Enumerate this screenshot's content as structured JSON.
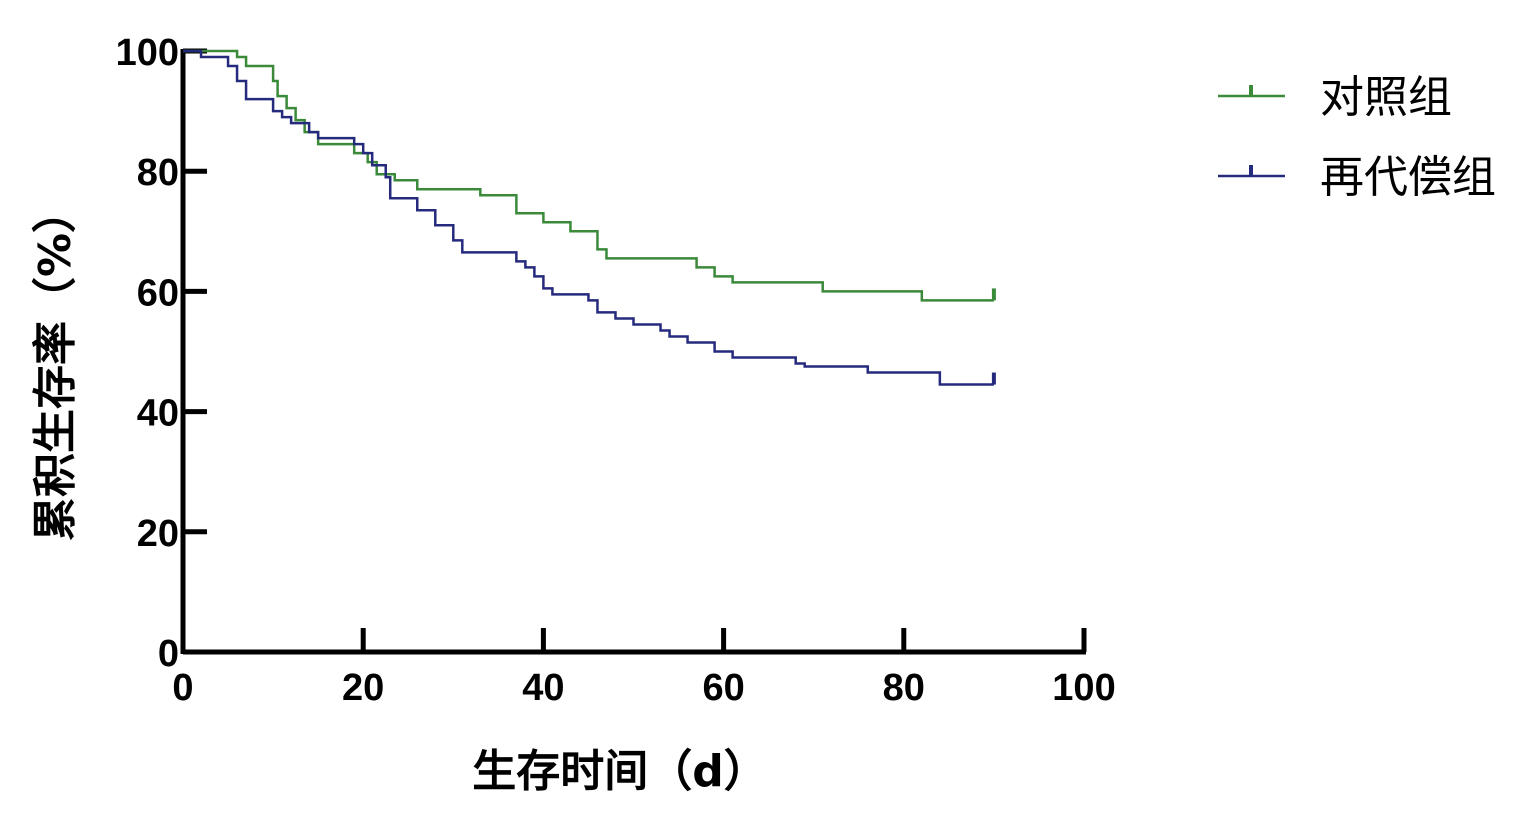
{
  "chart_data": {
    "type": "line",
    "step": true,
    "xlabel": "生存时间（d）",
    "ylabel": "累积生存率（%）",
    "xlim": [
      0,
      100
    ],
    "ylim": [
      0,
      100
    ],
    "xticks": [
      "0",
      "20",
      "40",
      "60",
      "80",
      "100"
    ],
    "yticks": [
      "0",
      "20",
      "40",
      "60",
      "80",
      "100"
    ],
    "grid": false,
    "legend_position": "top-right",
    "series": [
      {
        "name": "对照组",
        "color": "#3a8a3a",
        "censor_marks": [
          [
            90,
            58.5
          ]
        ],
        "points": [
          [
            0,
            100
          ],
          [
            6,
            99
          ],
          [
            7,
            97.5
          ],
          [
            10,
            95
          ],
          [
            10.5,
            92.5
          ],
          [
            11.5,
            90.5
          ],
          [
            12.5,
            88.5
          ],
          [
            13.5,
            86.5
          ],
          [
            15,
            84.5
          ],
          [
            19,
            83
          ],
          [
            20.5,
            81.5
          ],
          [
            21.5,
            79.5
          ],
          [
            23.5,
            78.5
          ],
          [
            26,
            77
          ],
          [
            33,
            76
          ],
          [
            37,
            73
          ],
          [
            40,
            71.5
          ],
          [
            43,
            70
          ],
          [
            46,
            67
          ],
          [
            47,
            65.5
          ],
          [
            57,
            64
          ],
          [
            59,
            62.5
          ],
          [
            61,
            61.5
          ],
          [
            71,
            60
          ],
          [
            82,
            58.5
          ],
          [
            90,
            58.5
          ]
        ]
      },
      {
        "name": "再代偿组",
        "color": "#262a7d",
        "censor_marks": [
          [
            90,
            44.5
          ]
        ],
        "points": [
          [
            0,
            100
          ],
          [
            2,
            99
          ],
          [
            5,
            97.5
          ],
          [
            6,
            95
          ],
          [
            7,
            92
          ],
          [
            10,
            90
          ],
          [
            11,
            89
          ],
          [
            12,
            88
          ],
          [
            14,
            86.5
          ],
          [
            15,
            85.5
          ],
          [
            19,
            84.5
          ],
          [
            20,
            83
          ],
          [
            21,
            81
          ],
          [
            22.5,
            79
          ],
          [
            23,
            75.5
          ],
          [
            26,
            73.5
          ],
          [
            28,
            71
          ],
          [
            30,
            68.5
          ],
          [
            31,
            66.5
          ],
          [
            37,
            65
          ],
          [
            38,
            64
          ],
          [
            39,
            62.5
          ],
          [
            40,
            60.5
          ],
          [
            41,
            59.5
          ],
          [
            45,
            58.5
          ],
          [
            46,
            56.5
          ],
          [
            48,
            55.5
          ],
          [
            50,
            54.5
          ],
          [
            53,
            53.5
          ],
          [
            54,
            52.5
          ],
          [
            56,
            51.5
          ],
          [
            59,
            50
          ],
          [
            61,
            49
          ],
          [
            68,
            48
          ],
          [
            69,
            47.5
          ],
          [
            76,
            46.5
          ],
          [
            84,
            44.5
          ],
          [
            90,
            44.5
          ]
        ]
      }
    ]
  }
}
